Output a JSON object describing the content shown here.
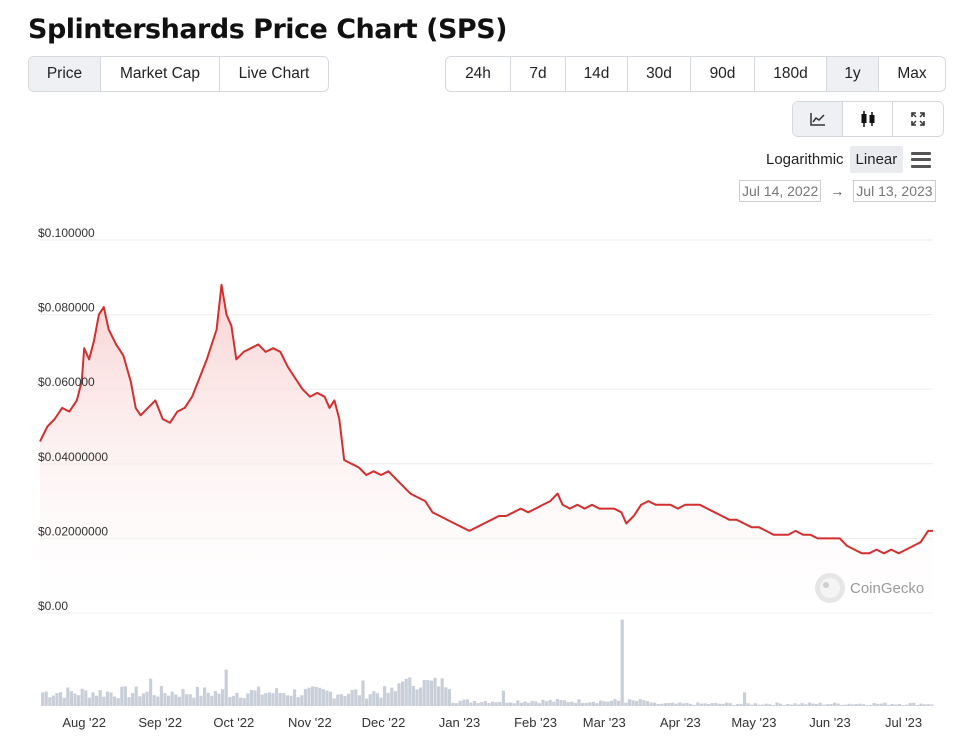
{
  "title": "Splintershards Price Chart (SPS)",
  "type_tabs": [
    {
      "label": "Price",
      "active": true
    },
    {
      "label": "Market Cap",
      "active": false
    },
    {
      "label": "Live Chart",
      "active": false
    }
  ],
  "range_tabs": [
    {
      "label": "24h",
      "active": false
    },
    {
      "label": "7d",
      "active": false
    },
    {
      "label": "14d",
      "active": false
    },
    {
      "label": "30d",
      "active": false
    },
    {
      "label": "90d",
      "active": false
    },
    {
      "label": "180d",
      "active": false
    },
    {
      "label": "1y",
      "active": true
    },
    {
      "label": "Max",
      "active": false
    }
  ],
  "view_tabs": [
    {
      "icon": "line-chart-icon",
      "active": true
    },
    {
      "icon": "candlestick-icon",
      "active": false
    },
    {
      "icon": "fullscreen-icon",
      "active": false
    }
  ],
  "scale": {
    "log_label": "Logarithmic",
    "linear_label": "Linear",
    "active": "Linear"
  },
  "date_range": {
    "from": "Jul 14, 2022",
    "to": "Jul 13, 2023",
    "arrow": "→"
  },
  "watermark": "CoinGecko",
  "colors": {
    "line": "#d32f2f",
    "fill_top": "#f8d7d7",
    "volume": "#c9cfd8",
    "grid": "#eeeeee"
  },
  "chart_data": {
    "type": "area",
    "ylim": [
      0,
      0.1
    ],
    "y_ticks": [
      {
        "value": 0.1,
        "label": "$0.100000"
      },
      {
        "value": 0.08,
        "label": "$0.080000"
      },
      {
        "value": 0.06,
        "label": "$0.060000"
      },
      {
        "value": 0.04,
        "label": "$0.04000000"
      },
      {
        "value": 0.02,
        "label": "$0.02000000"
      },
      {
        "value": 0,
        "label": "$0.00"
      }
    ],
    "x_ticks": [
      {
        "date": "2022-08-01",
        "label": "Aug '22"
      },
      {
        "date": "2022-09-01",
        "label": "Sep '22"
      },
      {
        "date": "2022-10-01",
        "label": "Oct '22"
      },
      {
        "date": "2022-11-01",
        "label": "Nov '22"
      },
      {
        "date": "2022-12-01",
        "label": "Dec '22"
      },
      {
        "date": "2023-01-01",
        "label": "Jan '23"
      },
      {
        "date": "2023-02-01",
        "label": "Feb '23"
      },
      {
        "date": "2023-03-01",
        "label": "Mar '23"
      },
      {
        "date": "2023-04-01",
        "label": "Apr '23"
      },
      {
        "date": "2023-05-01",
        "label": "May '23"
      },
      {
        "date": "2023-06-01",
        "label": "Jun '23"
      },
      {
        "date": "2023-07-01",
        "label": "Jul '23"
      }
    ],
    "x_range": [
      "2022-07-14",
      "2023-07-13"
    ],
    "series": [
      {
        "points": [
          [
            "2022-07-14",
            0.046
          ],
          [
            "2022-07-17",
            0.05
          ],
          [
            "2022-07-20",
            0.052
          ],
          [
            "2022-07-23",
            0.055
          ],
          [
            "2022-07-26",
            0.054
          ],
          [
            "2022-07-29",
            0.057
          ],
          [
            "2022-07-31",
            0.062
          ],
          [
            "2022-08-01",
            0.071
          ],
          [
            "2022-08-03",
            0.068
          ],
          [
            "2022-08-05",
            0.073
          ],
          [
            "2022-08-07",
            0.08
          ],
          [
            "2022-08-09",
            0.082
          ],
          [
            "2022-08-11",
            0.076
          ],
          [
            "2022-08-14",
            0.072
          ],
          [
            "2022-08-17",
            0.069
          ],
          [
            "2022-08-20",
            0.062
          ],
          [
            "2022-08-22",
            0.055
          ],
          [
            "2022-08-24",
            0.053
          ],
          [
            "2022-08-27",
            0.055
          ],
          [
            "2022-08-30",
            0.057
          ],
          [
            "2022-09-02",
            0.052
          ],
          [
            "2022-09-05",
            0.051
          ],
          [
            "2022-09-08",
            0.054
          ],
          [
            "2022-09-11",
            0.055
          ],
          [
            "2022-09-14",
            0.058
          ],
          [
            "2022-09-17",
            0.063
          ],
          [
            "2022-09-20",
            0.068
          ],
          [
            "2022-09-22",
            0.072
          ],
          [
            "2022-09-24",
            0.076
          ],
          [
            "2022-09-26",
            0.088
          ],
          [
            "2022-09-28",
            0.08
          ],
          [
            "2022-09-30",
            0.077
          ],
          [
            "2022-10-02",
            0.068
          ],
          [
            "2022-10-05",
            0.07
          ],
          [
            "2022-10-08",
            0.071
          ],
          [
            "2022-10-11",
            0.072
          ],
          [
            "2022-10-14",
            0.07
          ],
          [
            "2022-10-17",
            0.071
          ],
          [
            "2022-10-20",
            0.07
          ],
          [
            "2022-10-23",
            0.066
          ],
          [
            "2022-10-26",
            0.063
          ],
          [
            "2022-10-29",
            0.06
          ],
          [
            "2022-11-01",
            0.058
          ],
          [
            "2022-11-04",
            0.059
          ],
          [
            "2022-11-07",
            0.058
          ],
          [
            "2022-11-09",
            0.055
          ],
          [
            "2022-11-11",
            0.057
          ],
          [
            "2022-11-13",
            0.052
          ],
          [
            "2022-11-15",
            0.041
          ],
          [
            "2022-11-18",
            0.04
          ],
          [
            "2022-11-21",
            0.039
          ],
          [
            "2022-11-24",
            0.037
          ],
          [
            "2022-11-27",
            0.038
          ],
          [
            "2022-11-30",
            0.037
          ],
          [
            "2022-12-03",
            0.038
          ],
          [
            "2022-12-06",
            0.036
          ],
          [
            "2022-12-09",
            0.034
          ],
          [
            "2022-12-12",
            0.032
          ],
          [
            "2022-12-15",
            0.031
          ],
          [
            "2022-12-18",
            0.03
          ],
          [
            "2022-12-21",
            0.027
          ],
          [
            "2022-12-24",
            0.026
          ],
          [
            "2022-12-27",
            0.025
          ],
          [
            "2022-12-30",
            0.024
          ],
          [
            "2023-01-02",
            0.023
          ],
          [
            "2023-01-05",
            0.022
          ],
          [
            "2023-01-08",
            0.023
          ],
          [
            "2023-01-11",
            0.024
          ],
          [
            "2023-01-14",
            0.025
          ],
          [
            "2023-01-17",
            0.026
          ],
          [
            "2023-01-20",
            0.026
          ],
          [
            "2023-01-23",
            0.027
          ],
          [
            "2023-01-26",
            0.028
          ],
          [
            "2023-01-29",
            0.027
          ],
          [
            "2023-02-01",
            0.028
          ],
          [
            "2023-02-04",
            0.029
          ],
          [
            "2023-02-07",
            0.03
          ],
          [
            "2023-02-10",
            0.032
          ],
          [
            "2023-02-12",
            0.029
          ],
          [
            "2023-02-15",
            0.028
          ],
          [
            "2023-02-18",
            0.029
          ],
          [
            "2023-02-21",
            0.028
          ],
          [
            "2023-02-24",
            0.029
          ],
          [
            "2023-02-27",
            0.028
          ],
          [
            "2023-03-02",
            0.028
          ],
          [
            "2023-03-05",
            0.028
          ],
          [
            "2023-03-08",
            0.027
          ],
          [
            "2023-03-10",
            0.024
          ],
          [
            "2023-03-13",
            0.026
          ],
          [
            "2023-03-16",
            0.029
          ],
          [
            "2023-03-19",
            0.03
          ],
          [
            "2023-03-22",
            0.029
          ],
          [
            "2023-03-25",
            0.029
          ],
          [
            "2023-03-28",
            0.029
          ],
          [
            "2023-03-31",
            0.028
          ],
          [
            "2023-04-03",
            0.029
          ],
          [
            "2023-04-06",
            0.029
          ],
          [
            "2023-04-09",
            0.029
          ],
          [
            "2023-04-12",
            0.028
          ],
          [
            "2023-04-15",
            0.027
          ],
          [
            "2023-04-18",
            0.026
          ],
          [
            "2023-04-21",
            0.025
          ],
          [
            "2023-04-24",
            0.025
          ],
          [
            "2023-04-27",
            0.024
          ],
          [
            "2023-04-30",
            0.023
          ],
          [
            "2023-05-03",
            0.023
          ],
          [
            "2023-05-06",
            0.022
          ],
          [
            "2023-05-09",
            0.021
          ],
          [
            "2023-05-12",
            0.021
          ],
          [
            "2023-05-15",
            0.021
          ],
          [
            "2023-05-18",
            0.022
          ],
          [
            "2023-05-21",
            0.021
          ],
          [
            "2023-05-24",
            0.021
          ],
          [
            "2023-05-27",
            0.02
          ],
          [
            "2023-05-30",
            0.02
          ],
          [
            "2023-06-02",
            0.02
          ],
          [
            "2023-06-05",
            0.02
          ],
          [
            "2023-06-08",
            0.018
          ],
          [
            "2023-06-11",
            0.017
          ],
          [
            "2023-06-14",
            0.016
          ],
          [
            "2023-06-17",
            0.016
          ],
          [
            "2023-06-20",
            0.017
          ],
          [
            "2023-06-23",
            0.016
          ],
          [
            "2023-06-26",
            0.017
          ],
          [
            "2023-06-29",
            0.016
          ],
          [
            "2023-07-02",
            0.017
          ],
          [
            "2023-07-05",
            0.018
          ],
          [
            "2023-07-08",
            0.019
          ],
          [
            "2023-07-11",
            0.022
          ],
          [
            "2023-07-13",
            0.022
          ]
        ]
      }
    ],
    "volume": {
      "unit": "relative",
      "spikes": [
        [
          "2022-09-28",
          0.4
        ],
        [
          "2022-08-27",
          0.3
        ],
        [
          "2022-12-08",
          0.27
        ],
        [
          "2023-03-08",
          0.95
        ],
        [
          "2023-04-27",
          0.15
        ],
        [
          "2022-11-22",
          0.28
        ],
        [
          "2023-01-18",
          0.17
        ]
      ]
    }
  }
}
